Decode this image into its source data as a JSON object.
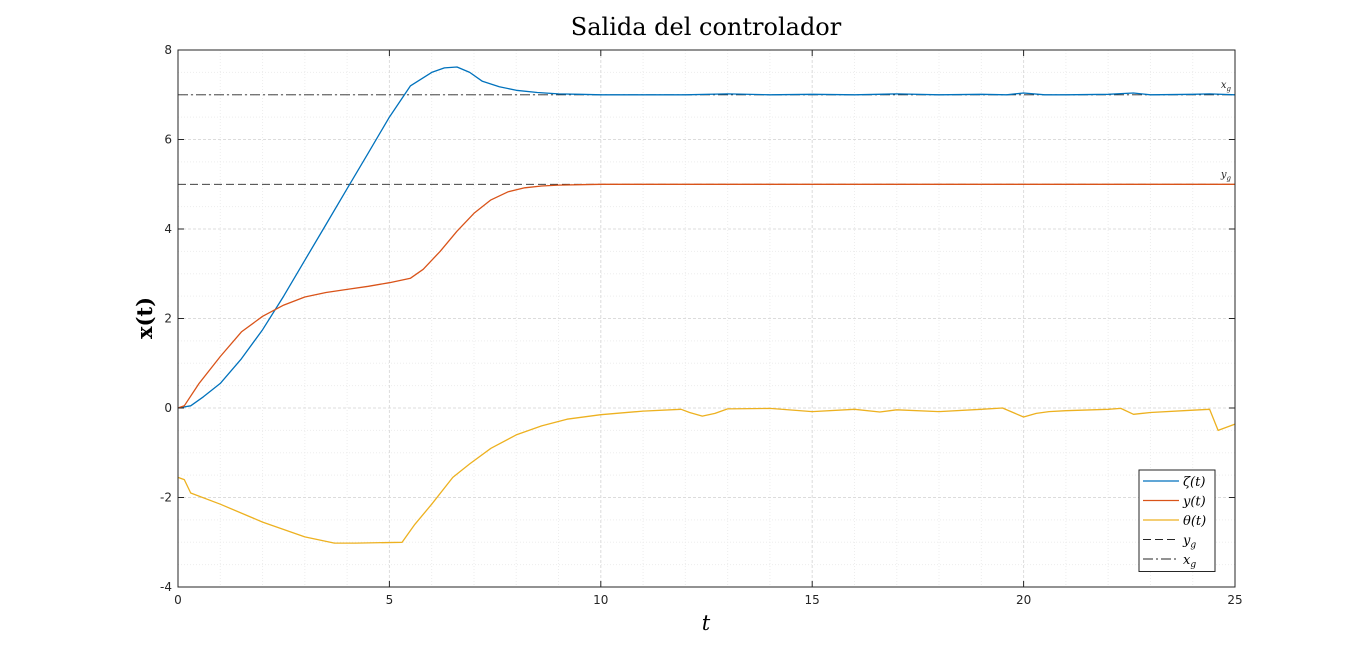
{
  "chart_data": {
    "type": "line",
    "title": "Salida del controlador",
    "xlabel": "t",
    "ylabel": "x(t)",
    "xlim": [
      0,
      25
    ],
    "ylim": [
      -4,
      8
    ],
    "xticks": [
      "0",
      "5",
      "10",
      "15",
      "20",
      "25"
    ],
    "yticks": [
      "-4",
      "-2",
      "0",
      "2",
      "4",
      "6",
      "8"
    ],
    "grid": true,
    "minor_grid": true,
    "legend_position": "bottom-right",
    "series": [
      {
        "name": "ζ(t)",
        "color": "#0072BD",
        "style": "solid",
        "x": [
          0,
          0.3,
          0.6,
          1.0,
          1.5,
          2.0,
          2.5,
          3.0,
          3.5,
          4.0,
          4.5,
          5.0,
          5.5,
          6.0,
          6.3,
          6.6,
          6.9,
          7.2,
          7.6,
          8.0,
          8.5,
          9.0,
          9.5,
          10,
          11,
          12,
          13,
          14,
          15,
          16,
          17,
          18,
          19,
          19.6,
          20,
          20.5,
          21,
          22,
          22.6,
          23,
          24,
          24.4,
          25
        ],
        "y": [
          0,
          0.05,
          0.25,
          0.55,
          1.1,
          1.75,
          2.5,
          3.3,
          4.1,
          4.9,
          5.7,
          6.5,
          7.2,
          7.5,
          7.6,
          7.62,
          7.5,
          7.3,
          7.18,
          7.1,
          7.05,
          7.02,
          7.01,
          7.0,
          7.0,
          7.0,
          7.02,
          7.0,
          7.01,
          7.0,
          7.02,
          7.0,
          7.01,
          7.0,
          7.04,
          7.0,
          7.0,
          7.01,
          7.04,
          7.0,
          7.01,
          7.02,
          7.0
        ]
      },
      {
        "name": "y(t)",
        "color": "#D95319",
        "style": "solid",
        "x": [
          0,
          0.15,
          0.5,
          1.0,
          1.5,
          2.0,
          2.5,
          3.0,
          3.5,
          4.0,
          4.5,
          5.0,
          5.5,
          5.8,
          6.2,
          6.6,
          7.0,
          7.4,
          7.8,
          8.2,
          8.6,
          9.0,
          9.5,
          10,
          12,
          15,
          20,
          25
        ],
        "y": [
          0,
          0.05,
          0.55,
          1.15,
          1.7,
          2.05,
          2.3,
          2.48,
          2.58,
          2.65,
          2.72,
          2.8,
          2.9,
          3.1,
          3.5,
          3.95,
          4.35,
          4.65,
          4.83,
          4.92,
          4.96,
          4.98,
          4.99,
          5.0,
          5.0,
          5.0,
          5.0,
          5.0
        ]
      },
      {
        "name": "θ(t)",
        "color": "#EDB120",
        "style": "solid",
        "x": [
          0,
          0.15,
          0.3,
          1.0,
          2.0,
          3.0,
          3.7,
          4.2,
          5.3,
          5.6,
          6.0,
          6.5,
          6.9,
          7.4,
          8.0,
          8.6,
          9.2,
          10,
          11,
          11.9,
          12.1,
          12.4,
          12.7,
          13,
          14,
          15,
          16,
          16.6,
          17,
          18,
          19,
          19.5,
          19.8,
          20,
          20.3,
          20.6,
          21,
          22,
          22.3,
          22.6,
          23,
          24,
          24.4,
          24.6,
          25
        ],
        "y": [
          -1.55,
          -1.6,
          -1.9,
          -2.15,
          -2.55,
          -2.88,
          -3.02,
          -3.02,
          -3.0,
          -2.6,
          -2.15,
          -1.55,
          -1.25,
          -0.9,
          -0.6,
          -0.4,
          -0.25,
          -0.15,
          -0.07,
          -0.03,
          -0.1,
          -0.18,
          -0.12,
          -0.02,
          -0.01,
          -0.08,
          -0.03,
          -0.09,
          -0.04,
          -0.08,
          -0.03,
          0.0,
          -0.12,
          -0.2,
          -0.12,
          -0.08,
          -0.06,
          -0.03,
          -0.01,
          -0.14,
          -0.1,
          -0.05,
          -0.03,
          -0.5,
          -0.36
        ]
      },
      {
        "name": "y_g",
        "color": "#262626",
        "style": "dashed",
        "x": [
          0,
          25
        ],
        "y": [
          5,
          5
        ]
      },
      {
        "name": "x_g",
        "color": "#262626",
        "style": "dashdot",
        "x": [
          0,
          25
        ],
        "y": [
          7,
          7
        ]
      }
    ],
    "annotations": [
      {
        "text": "x_g",
        "x": 25,
        "y": 7
      },
      {
        "text": "y_g",
        "x": 25,
        "y": 5
      }
    ]
  }
}
